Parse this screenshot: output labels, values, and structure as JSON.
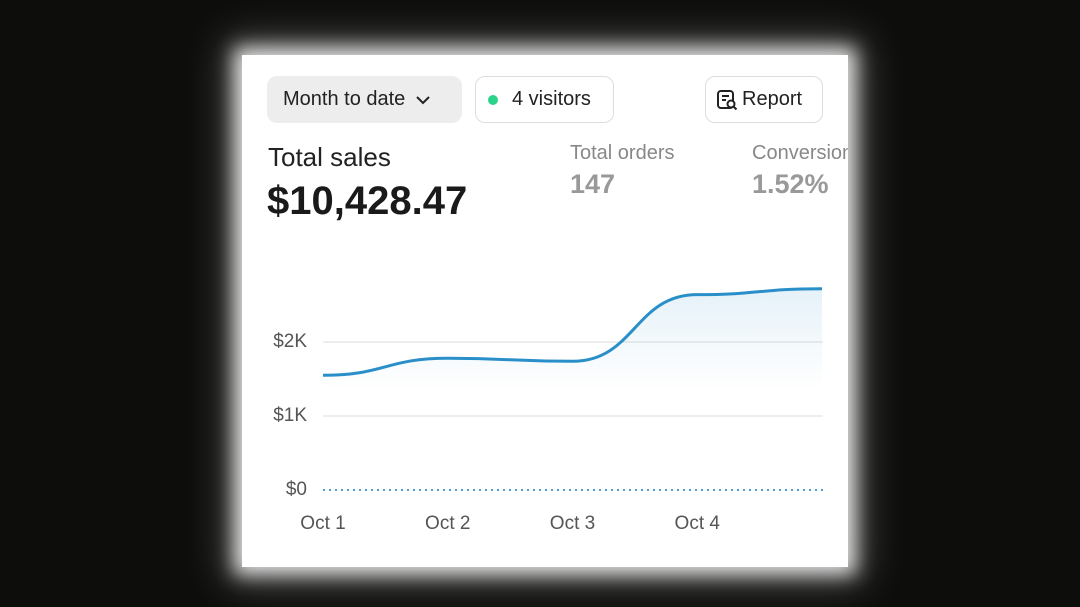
{
  "toolbar": {
    "date_range": "Month to date",
    "visitors": "4 visitors",
    "report": "Report"
  },
  "metrics": [
    {
      "label": "Total sales",
      "value": "$10,428.47"
    },
    {
      "label": "Total orders",
      "value": "147"
    },
    {
      "label": "Conversion",
      "value": "1.52%"
    }
  ],
  "chart_data": {
    "type": "line",
    "categories": [
      "Oct 1",
      "Oct 2",
      "Oct 3",
      "Oct 4",
      null
    ],
    "series": [
      {
        "color": "#2a8fc9",
        "values": [
          1550,
          1780,
          1740,
          2640,
          2720
        ]
      }
    ],
    "ylim": [
      0,
      3000
    ],
    "yticks": [
      {
        "value": 0,
        "label": "$0"
      },
      {
        "value": 1000,
        "label": "$1K"
      },
      {
        "value": 2000,
        "label": "$2K"
      }
    ],
    "grid": true
  }
}
